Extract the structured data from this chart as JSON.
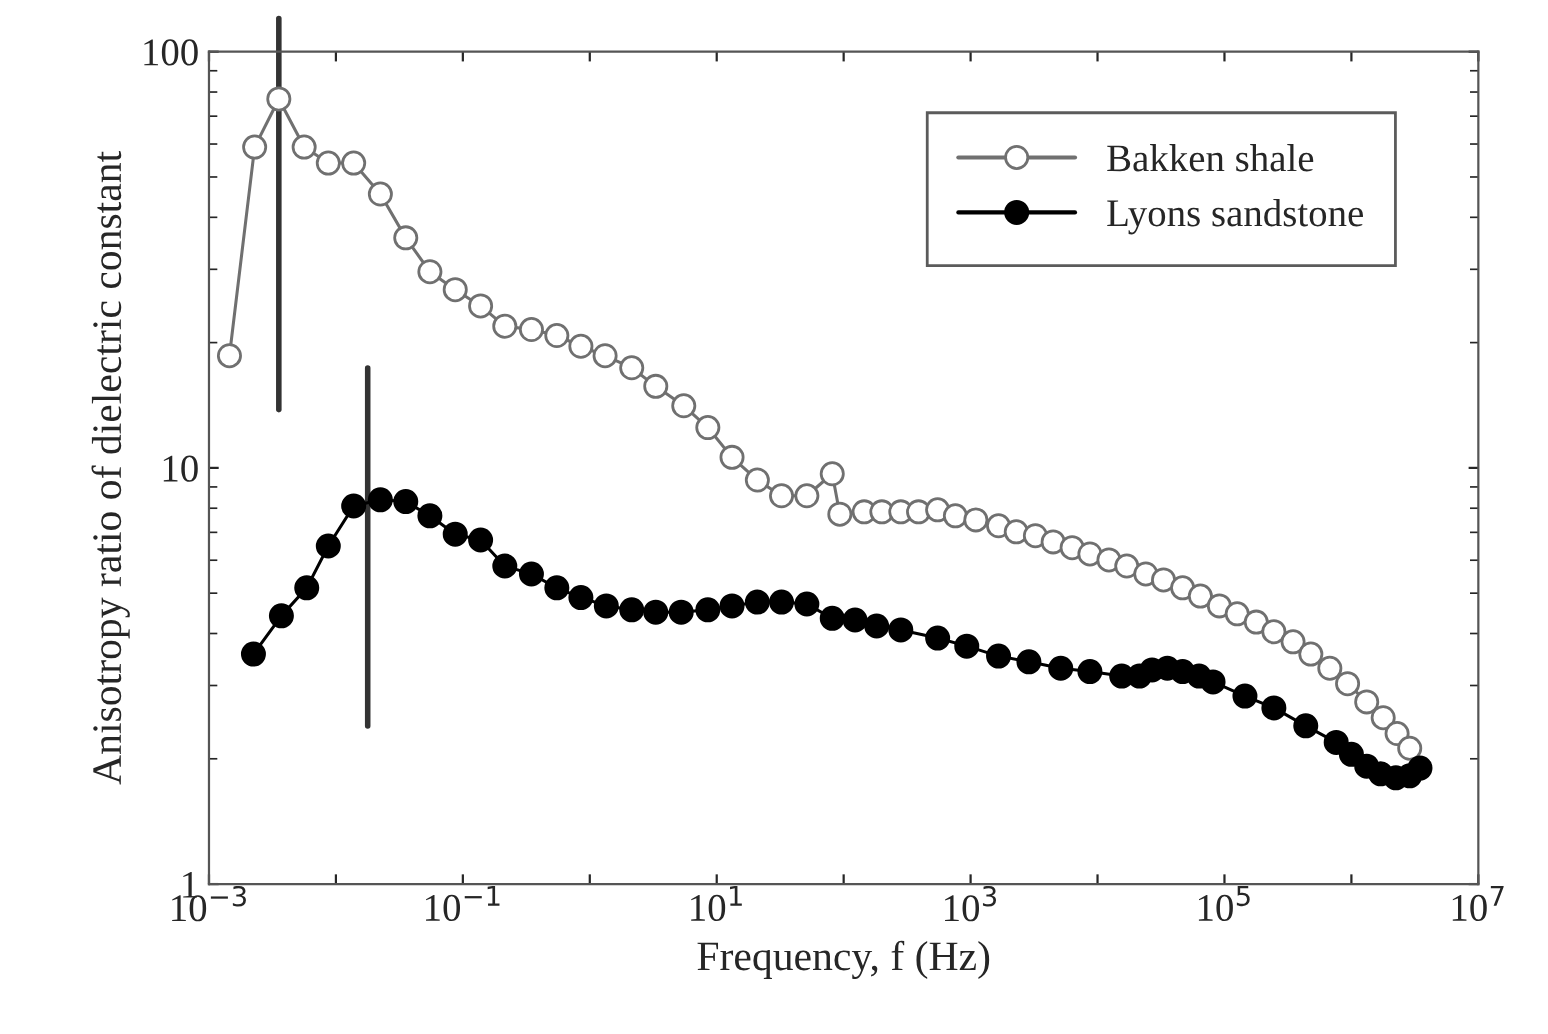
{
  "chart_data": {
    "type": "line",
    "xlabel": "Frequency, f (Hz)",
    "ylabel": "Anisotropy ratio of dielectric constant",
    "log": "xy",
    "xlim": [
      0.001,
      10000000
    ],
    "ylim": [
      1,
      100
    ],
    "xticks": [
      {
        "value": 0.001,
        "label": "10$^{−3}$"
      },
      {
        "value": 0.01,
        "label": null
      },
      {
        "value": 0.1,
        "label": "10$^{−1}$"
      },
      {
        "value": 1,
        "label": null
      },
      {
        "value": 10,
        "label": "10$^{1}$"
      },
      {
        "value": 100,
        "label": null
      },
      {
        "value": 1000,
        "label": "10$^{3}$"
      },
      {
        "value": 10000,
        "label": null
      },
      {
        "value": 100000,
        "label": "10$^{5}$"
      },
      {
        "value": 1000000,
        "label": null
      },
      {
        "value": 10000000,
        "label": "10$^{7}$"
      }
    ],
    "yticks": [
      1,
      10,
      100
    ],
    "grid": false,
    "legend": "top right",
    "marker": "circle",
    "line_style": "solid",
    "ref_lines": [
      {
        "axis": "x",
        "value": 0.00355,
        "color": "#333333"
      },
      {
        "axis": "x",
        "value": 0.0178,
        "color": "#333333"
      }
    ],
    "series": [
      {
        "name": "Bakken shale",
        "color": "#707070",
        "x": [
          0.00145,
          0.00229,
          0.00355,
          0.00562,
          0.00871,
          0.0138,
          0.0224,
          0.0355,
          0.055,
          0.0871,
          0.138,
          0.214,
          0.347,
          0.55,
          0.851,
          1.32,
          2.14,
          3.31,
          5.5,
          8.51,
          13.2,
          20.9,
          32.4,
          51.3,
          81.3,
          93.3,
          145,
          200,
          282,
          389,
          550,
          759,
          1100,
          1660,
          2290,
          3240,
          4470,
          6310,
          8710,
          12300,
          17000,
          24000,
          33100,
          46800,
          64600,
          91200,
          126000,
          178000,
          245000,
          347000,
          479000,
          676000,
          933000,
          1320000,
          1780000,
          2290000,
          2880000
        ],
        "values": [
          18.6,
          59,
          77,
          59,
          54,
          54,
          45.5,
          35.7,
          29.6,
          26.8,
          24.5,
          21.9,
          21.5,
          20.8,
          19.6,
          18.6,
          17.4,
          15.7,
          14.1,
          12.5,
          10.6,
          9.35,
          8.57,
          8.57,
          9.68,
          7.74,
          7.84,
          7.84,
          7.84,
          7.84,
          7.93,
          7.67,
          7.5,
          7.26,
          7.02,
          6.87,
          6.64,
          6.43,
          6.21,
          6.01,
          5.81,
          5.56,
          5.38,
          5.15,
          4.92,
          4.66,
          4.46,
          4.26,
          4.04,
          3.82,
          3.57,
          3.3,
          3.03,
          2.74,
          2.51,
          2.3,
          2.12
        ]
      },
      {
        "name": "Lyons sandstone",
        "color": "#000000",
        "x": [
          0.00224,
          0.00372,
          0.00589,
          0.00871,
          0.0138,
          0.0224,
          0.0355,
          0.055,
          0.0871,
          0.138,
          0.214,
          0.347,
          0.55,
          0.851,
          1.35,
          2.14,
          3.31,
          5.25,
          8.51,
          13.2,
          20.9,
          32.4,
          51.3,
          81.3,
          123,
          182,
          282,
          550,
          933,
          1660,
          2880,
          5130,
          8710,
          15500,
          21400,
          26900,
          35500,
          46800,
          63100,
          81300,
          145000,
          245000,
          437000,
          759000,
          1000000,
          1320000,
          1700000,
          2240000,
          2880000,
          3470000
        ],
        "values": [
          3.57,
          4.41,
          5.15,
          6.49,
          8.1,
          8.38,
          8.3,
          7.67,
          6.93,
          6.71,
          5.81,
          5.56,
          5.15,
          4.88,
          4.66,
          4.56,
          4.5,
          4.5,
          4.56,
          4.66,
          4.76,
          4.76,
          4.71,
          4.35,
          4.31,
          4.17,
          4.08,
          3.9,
          3.73,
          3.53,
          3.42,
          3.3,
          3.24,
          3.16,
          3.16,
          3.27,
          3.3,
          3.24,
          3.16,
          3.06,
          2.83,
          2.65,
          2.4,
          2.19,
          2.05,
          1.92,
          1.84,
          1.8,
          1.82,
          1.9
        ]
      }
    ]
  }
}
